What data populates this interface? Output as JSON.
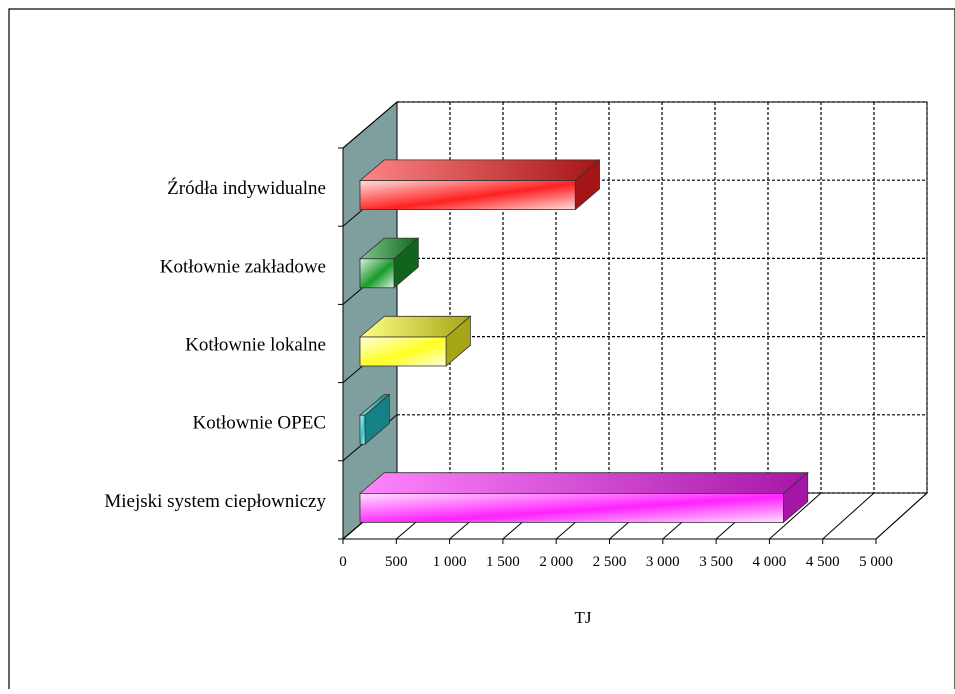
{
  "chart_data": {
    "type": "bar",
    "orientation": "horizontal",
    "style": "3d",
    "categories": [
      "Źródła indywidualne",
      "Kotłownie zakładowe",
      "Kotłownie lokalne",
      "Kotłownie OPEC",
      "Miejski system ciepłowniczy"
    ],
    "values": [
      2150,
      340,
      860,
      50,
      4230
    ],
    "colors": [
      "#ff2020",
      "#1a9a2a",
      "#ffff22",
      "#22c8d0",
      "#ff22ff"
    ],
    "x_ticks": [
      "0",
      "500",
      "1 000",
      "1 500",
      "2 000",
      "2 500",
      "3 000",
      "3 500",
      "4 000",
      "4 500",
      "5 000"
    ],
    "xlim": [
      0,
      5000
    ],
    "xlabel": "TJ",
    "grid": true,
    "legend": "none"
  }
}
